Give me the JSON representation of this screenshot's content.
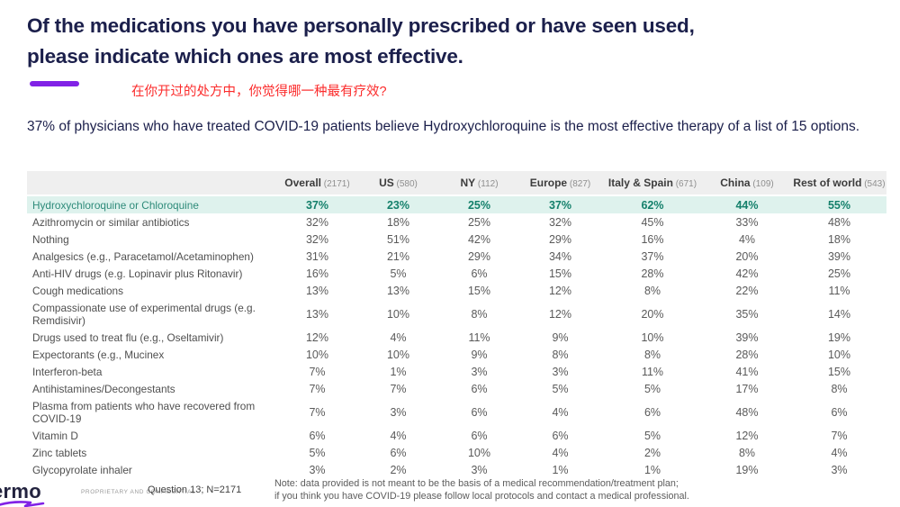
{
  "header": {
    "title": "Of the medications you have personally prescribed or have seen used, please indicate which ones are most effective.",
    "translation": "在你开过的处方中，你觉得哪一种最有疗效?"
  },
  "subtitle": "37% of physicians who have treated COVID-19 patients believe Hydroxychloroquine is the most effective therapy of a list of 15 options.",
  "colors": {
    "accent_purple": "#8122e6",
    "title_navy": "#1b1f4b",
    "translation_red": "#fb2b2b",
    "highlight_bg": "#def2ed",
    "highlight_text": "#2e8b7a",
    "header_bg": "#efefef",
    "body_text": "#5a5a5a"
  },
  "table": {
    "columns": [
      {
        "label": "Overall",
        "n": "(2171)"
      },
      {
        "label": "US",
        "n": "(580)"
      },
      {
        "label": "NY",
        "n": "(112)"
      },
      {
        "label": "Europe",
        "n": "(827)"
      },
      {
        "label": "Italy & Spain",
        "n": "(671)"
      },
      {
        "label": "China",
        "n": "(109)"
      },
      {
        "label": "Rest of world",
        "n": "(543)"
      }
    ],
    "rows": [
      {
        "label": "Hydroxychloroquine or Chloroquine",
        "values": [
          "37%",
          "23%",
          "25%",
          "37%",
          "62%",
          "44%",
          "55%"
        ],
        "highlight": true
      },
      {
        "label": "Azithromycin or similar antibiotics",
        "values": [
          "32%",
          "18%",
          "25%",
          "32%",
          "45%",
          "33%",
          "48%"
        ],
        "highlight": false
      },
      {
        "label": "Nothing",
        "values": [
          "32%",
          "51%",
          "42%",
          "29%",
          "16%",
          "4%",
          "18%"
        ],
        "highlight": false
      },
      {
        "label": "Analgesics (e.g., Paracetamol/Acetaminophen)",
        "values": [
          "31%",
          "21%",
          "29%",
          "34%",
          "37%",
          "20%",
          "39%"
        ],
        "highlight": false
      },
      {
        "label": "Anti-HIV drugs (e.g. Lopinavir plus Ritonavir)",
        "values": [
          "16%",
          "5%",
          "6%",
          "15%",
          "28%",
          "42%",
          "25%"
        ],
        "highlight": false
      },
      {
        "label": "Cough medications",
        "values": [
          "13%",
          "13%",
          "15%",
          "12%",
          "8%",
          "22%",
          "11%"
        ],
        "highlight": false
      },
      {
        "label": "Compassionate use of experimental drugs (e.g. Remdisivir)",
        "values": [
          "13%",
          "10%",
          "8%",
          "12%",
          "20%",
          "35%",
          "14%"
        ],
        "highlight": false
      },
      {
        "label": "Drugs used to treat flu (e.g., Oseltamivir)",
        "values": [
          "12%",
          "4%",
          "11%",
          "9%",
          "10%",
          "39%",
          "19%"
        ],
        "highlight": false
      },
      {
        "label": "Expectorants (e.g., Mucinex",
        "values": [
          "10%",
          "10%",
          "9%",
          "8%",
          "8%",
          "28%",
          "10%"
        ],
        "highlight": false
      },
      {
        "label": "Interferon-beta",
        "values": [
          "7%",
          "1%",
          "3%",
          "3%",
          "11%",
          "41%",
          "15%"
        ],
        "highlight": false
      },
      {
        "label": "Antihistamines/Decongestants",
        "values": [
          "7%",
          "7%",
          "6%",
          "5%",
          "5%",
          "17%",
          "8%"
        ],
        "highlight": false
      },
      {
        "label": "Plasma from patients who have recovered from COVID-19",
        "values": [
          "7%",
          "3%",
          "6%",
          "4%",
          "6%",
          "48%",
          "6%"
        ],
        "highlight": false
      },
      {
        "label": "Vitamin D",
        "values": [
          "6%",
          "4%",
          "6%",
          "6%",
          "5%",
          "12%",
          "7%"
        ],
        "highlight": false
      },
      {
        "label": "Zinc tablets",
        "values": [
          "5%",
          "6%",
          "10%",
          "4%",
          "2%",
          "8%",
          "4%"
        ],
        "highlight": false
      },
      {
        "label": "Glycopyrolate inhaler",
        "values": [
          "3%",
          "2%",
          "3%",
          "1%",
          "1%",
          "19%",
          "3%"
        ],
        "highlight": false
      }
    ]
  },
  "footer": {
    "logo_text": "ermo",
    "confidential": "PROPRIETARY AND CONFIDENTIAL",
    "question": "Question 13; N=2171",
    "note_line1": "Note: data provided is not meant to be the basis of a medical recommendation/treatment plan;",
    "note_line2": "if you think you have COVID-19 please follow local protocols and contact a medical professional."
  }
}
